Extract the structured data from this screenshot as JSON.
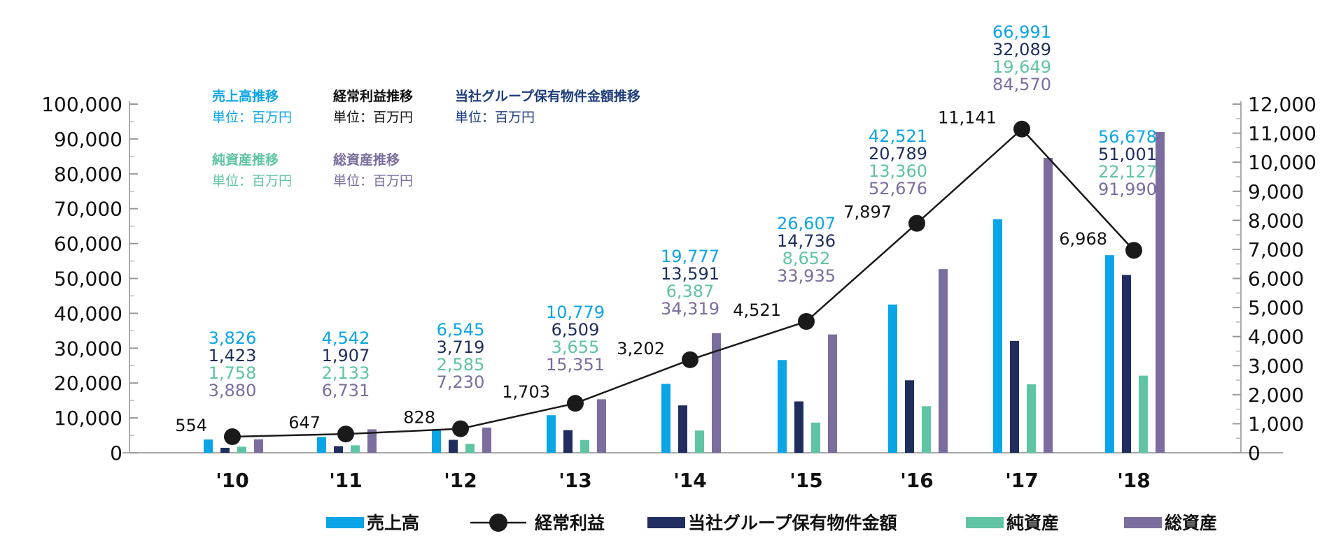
{
  "chart_data": {
    "type": "bar",
    "categories": [
      "'10",
      "'11",
      "'12",
      "'13",
      "'14",
      "'15",
      "'16",
      "'17",
      "'18"
    ],
    "y_left": {
      "ylim": [
        0,
        100000
      ],
      "ticks": [
        0,
        10000,
        20000,
        30000,
        40000,
        50000,
        60000,
        70000,
        80000,
        90000,
        100000
      ],
      "tick_labels": [
        "0",
        "10,000",
        "20,000",
        "30,000",
        "40,000",
        "50,000",
        "60,000",
        "70,000",
        "80,000",
        "90,000",
        "100,000"
      ]
    },
    "y_right": {
      "ylim": [
        0,
        12000
      ],
      "ticks": [
        0,
        1000,
        2000,
        3000,
        4000,
        5000,
        6000,
        7000,
        8000,
        9000,
        10000,
        11000,
        12000
      ],
      "tick_labels": [
        "0",
        "1,000",
        "2,000",
        "3,000",
        "4,000",
        "5,000",
        "6,000",
        "7,000",
        "8,000",
        "9,000",
        "10,000",
        "11,000",
        "12,000"
      ]
    },
    "series": [
      {
        "key": "sales",
        "name": "売上高",
        "type": "bar",
        "axis": "left",
        "color": "#0aa5e6",
        "values": [
          3826,
          4542,
          6545,
          10779,
          19777,
          26607,
          42521,
          66991,
          56678
        ],
        "labels": [
          "3,826",
          "4,542",
          "6,545",
          "10,779",
          "19,777",
          "26,607",
          "42,521",
          "66,991",
          "56,678"
        ]
      },
      {
        "key": "property",
        "name": "当社グループ保有物件金額",
        "type": "bar",
        "axis": "left",
        "color": "#1f2e5e",
        "values": [
          1423,
          1907,
          3719,
          6509,
          13591,
          14736,
          20789,
          32089,
          51001
        ],
        "labels": [
          "1,423",
          "1,907",
          "3,719",
          "6,509",
          "13,591",
          "14,736",
          "20,789",
          "32,089",
          "51,001"
        ]
      },
      {
        "key": "net_assets",
        "name": "純資産",
        "type": "bar",
        "axis": "left",
        "color": "#5fc4a4",
        "values": [
          1758,
          2133,
          2585,
          3655,
          6387,
          8652,
          13360,
          19649,
          22127
        ],
        "labels": [
          "1,758",
          "2,133",
          "2,585",
          "3,655",
          "6,387",
          "8,652",
          "13,360",
          "19,649",
          "22,127"
        ]
      },
      {
        "key": "total_assets",
        "name": "総資産",
        "type": "bar",
        "axis": "left",
        "color": "#7b6d9e",
        "values": [
          3880,
          6731,
          7230,
          15351,
          34319,
          33935,
          52676,
          84570,
          91990
        ],
        "labels": [
          "3,880",
          "6,731",
          "7,230",
          "15,351",
          "34,319",
          "33,935",
          "52,676",
          "84,570",
          "91,990"
        ]
      },
      {
        "key": "ordinary_profit",
        "name": "経常利益",
        "type": "line",
        "axis": "right",
        "color": "#1a1a1a",
        "values": [
          554,
          647,
          828,
          1703,
          3202,
          4521,
          7897,
          11141,
          6968
        ],
        "labels": [
          "554",
          "647",
          "828",
          "1,703",
          "3,202",
          "4,521",
          "7,897",
          "11,141",
          "6,968"
        ]
      }
    ],
    "annotations": [
      {
        "title": "売上高推移",
        "unit": "単位：百万円",
        "color": "#0aa5e6"
      },
      {
        "title": "経常利益推移",
        "unit": "単位：百万円",
        "color": "#111111"
      },
      {
        "title": "当社グループ保有物件金額推移",
        "unit": "単位：百万円",
        "color": "#1f3d7a"
      },
      {
        "title": "純資産推移",
        "unit": "単位：百万円",
        "color": "#5fc4a4"
      },
      {
        "title": "総資産推移",
        "unit": "単位：百万円",
        "color": "#7b6d9e"
      }
    ],
    "legend": {
      "position": "bottom",
      "order": [
        "sales",
        "ordinary_profit",
        "property",
        "net_assets",
        "total_assets"
      ]
    }
  }
}
